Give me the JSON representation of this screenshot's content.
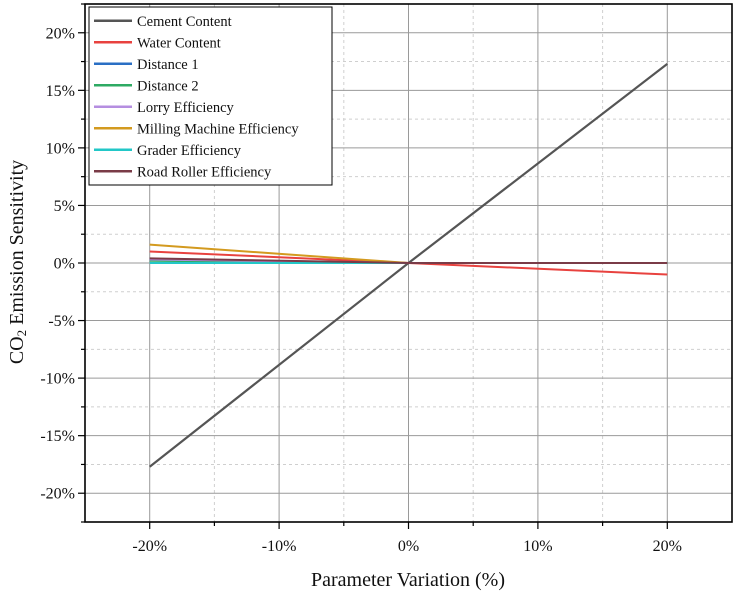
{
  "chart_data": {
    "type": "line",
    "title": "",
    "xlabel": "Parameter Variation (%)",
    "ylabel": {
      "prefix": "CO",
      "subscript": "2",
      "suffix": " Emission Sensitivity"
    },
    "xlim": [
      -25,
      25
    ],
    "ylim": [
      -22.5,
      22.5
    ],
    "x_ticks": [
      -20,
      -10,
      0,
      10,
      20
    ],
    "x_tick_labels": [
      "-20%",
      "-10%",
      "0%",
      "10%",
      "20%"
    ],
    "y_ticks": [
      -20,
      -15,
      -10,
      -5,
      0,
      5,
      10,
      15,
      20
    ],
    "y_tick_labels": [
      "-20%",
      "-15%",
      "-10%",
      "-5%",
      "0%",
      "5%",
      "10%",
      "15%",
      "20%"
    ],
    "grid": true,
    "legend_position": "top-left",
    "x": [
      -20,
      0,
      20
    ],
    "series": [
      {
        "name": "Cement Content",
        "color": "#555555",
        "values": [
          -17.7,
          0,
          17.3
        ]
      },
      {
        "name": "Water Content",
        "color": "#e8423f",
        "values": [
          1.0,
          0,
          -1.0
        ]
      },
      {
        "name": "Distance 1",
        "color": "#2a6fc4",
        "values": [
          0.3,
          0,
          0.0
        ]
      },
      {
        "name": "Distance 2",
        "color": "#2eaa63",
        "values": [
          0.2,
          0,
          0.0
        ]
      },
      {
        "name": "Lorry Efficiency",
        "color": "#b58ee0",
        "values": [
          0.3,
          0,
          0.0
        ]
      },
      {
        "name": "Milling Machine Efficiency",
        "color": "#d39a1f",
        "values": [
          1.6,
          0,
          0.0
        ]
      },
      {
        "name": "Grader Efficiency",
        "color": "#22c7c7",
        "values": [
          0.0,
          0,
          0.0
        ]
      },
      {
        "name": "Road Roller Efficiency",
        "color": "#7a3b47",
        "values": [
          0.4,
          0,
          0.0
        ]
      }
    ]
  }
}
